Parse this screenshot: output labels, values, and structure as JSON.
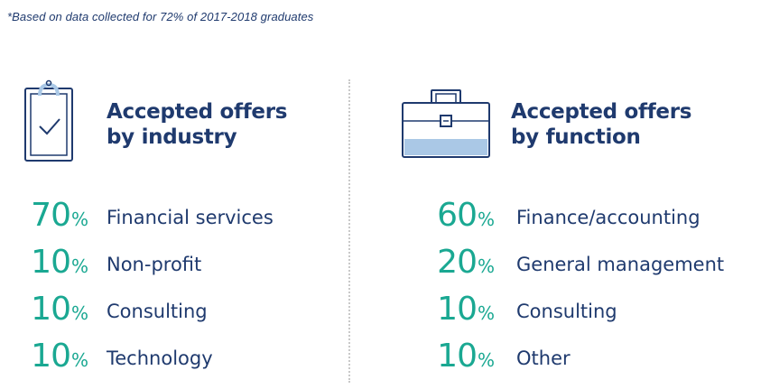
{
  "footnote": "*Based on data collected for 72% of 2017-2018 graduates",
  "colors": {
    "navy": "#1f3a6e",
    "teal": "#1aa892",
    "light_blue": "#aac8e6",
    "divider": "#c9c9c9"
  },
  "industry": {
    "icon": "clipboard-check-icon",
    "title_line1": "Accepted offers",
    "title_line2": "by industry",
    "items": [
      {
        "value": "70",
        "unit": "%",
        "label": "Financial services"
      },
      {
        "value": "10",
        "unit": "%",
        "label": "Non-profit"
      },
      {
        "value": "10",
        "unit": "%",
        "label": "Consulting"
      },
      {
        "value": "10",
        "unit": "%",
        "label": "Technology"
      }
    ]
  },
  "function": {
    "icon": "briefcase-icon",
    "title_line1": "Accepted offers",
    "title_line2": "by function",
    "items": [
      {
        "value": "60",
        "unit": "%",
        "label": "Finance/accounting"
      },
      {
        "value": "20",
        "unit": "%",
        "label": "General management"
      },
      {
        "value": "10",
        "unit": "%",
        "label": "Consulting"
      },
      {
        "value": "10",
        "unit": "%",
        "label": "Other"
      }
    ]
  }
}
